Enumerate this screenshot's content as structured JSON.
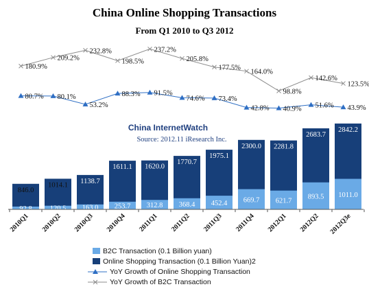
{
  "chart_data": {
    "type": "bar",
    "title": "China Online Shopping Transactions",
    "subtitle": "From Q1 2010 to Q3 2012",
    "watermark": "China InternetWatch",
    "source": "Source: 2012.11 iResearch Inc.",
    "categories": [
      "2010Q1",
      "2010Q2",
      "2010Q3",
      "2010Q4",
      "2011Q1",
      "2011Q2",
      "2011Q3",
      "2011Q4",
      "2012Q1",
      "2012Q2",
      "2012Q3e"
    ],
    "series": [
      {
        "name": "B2C Transaction (0.1 Billion yuan)",
        "type": "bar",
        "color": "#6aaae6",
        "values": [
          92.8,
          120.5,
          163.0,
          253.7,
          312.8,
          368.4,
          452.4,
          669.7,
          621.7,
          893.5,
          1011.0
        ],
        "labels": [
          "92.8",
          "120.5",
          "163.0",
          "253.7",
          "312.8",
          "368.4",
          "452.4",
          "669.7",
          "621.7",
          "893.5",
          "1011.0"
        ]
      },
      {
        "name": "Online Shopping Transaction (0.1 Billion Yuan)2",
        "type": "bar",
        "color": "#173f79",
        "values": [
          846.0,
          1014.1,
          1138.7,
          1611.1,
          1620.0,
          1770.7,
          1975.1,
          2300.0,
          2281.8,
          2683.7,
          2842.2
        ],
        "labels": [
          "846.0",
          "1014.1",
          "1138.7",
          "1611.1",
          "1620.0",
          "1770.7",
          "1975.1",
          "2300.0",
          "2281.8",
          "2683.7",
          "2842.2"
        ]
      },
      {
        "name": "YoY Growth of Online Shopping Transaction",
        "type": "line",
        "color": "#2f6fc4",
        "marker": "triangle",
        "values": [
          80.7,
          80.1,
          53.2,
          88.3,
          91.5,
          74.6,
          73.4,
          42.8,
          40.9,
          51.6,
          43.9
        ],
        "labels": [
          "80.7%",
          "80.1%",
          "53.2%",
          "88.3%",
          "91.5%",
          "74.6%",
          "73.4%",
          "42.8%",
          "40.9%",
          "51.6%",
          "43.9%"
        ]
      },
      {
        "name": "YoY Growth of B2C Transaction",
        "type": "line",
        "color": "#8c8c8c",
        "marker": "x",
        "values": [
          180.9,
          209.2,
          232.8,
          198.5,
          237.2,
          205.8,
          177.5,
          164.0,
          98.8,
          142.6,
          123.5
        ],
        "labels": [
          "180.9%",
          "209.2%",
          "232.8%",
          "198.5%",
          "237.2%",
          "205.8%",
          "177.5%",
          "164.0%",
          "98.8%",
          "142.6%",
          "123.5%"
        ]
      }
    ],
    "legend_position": "bottom-left",
    "grid": false
  }
}
